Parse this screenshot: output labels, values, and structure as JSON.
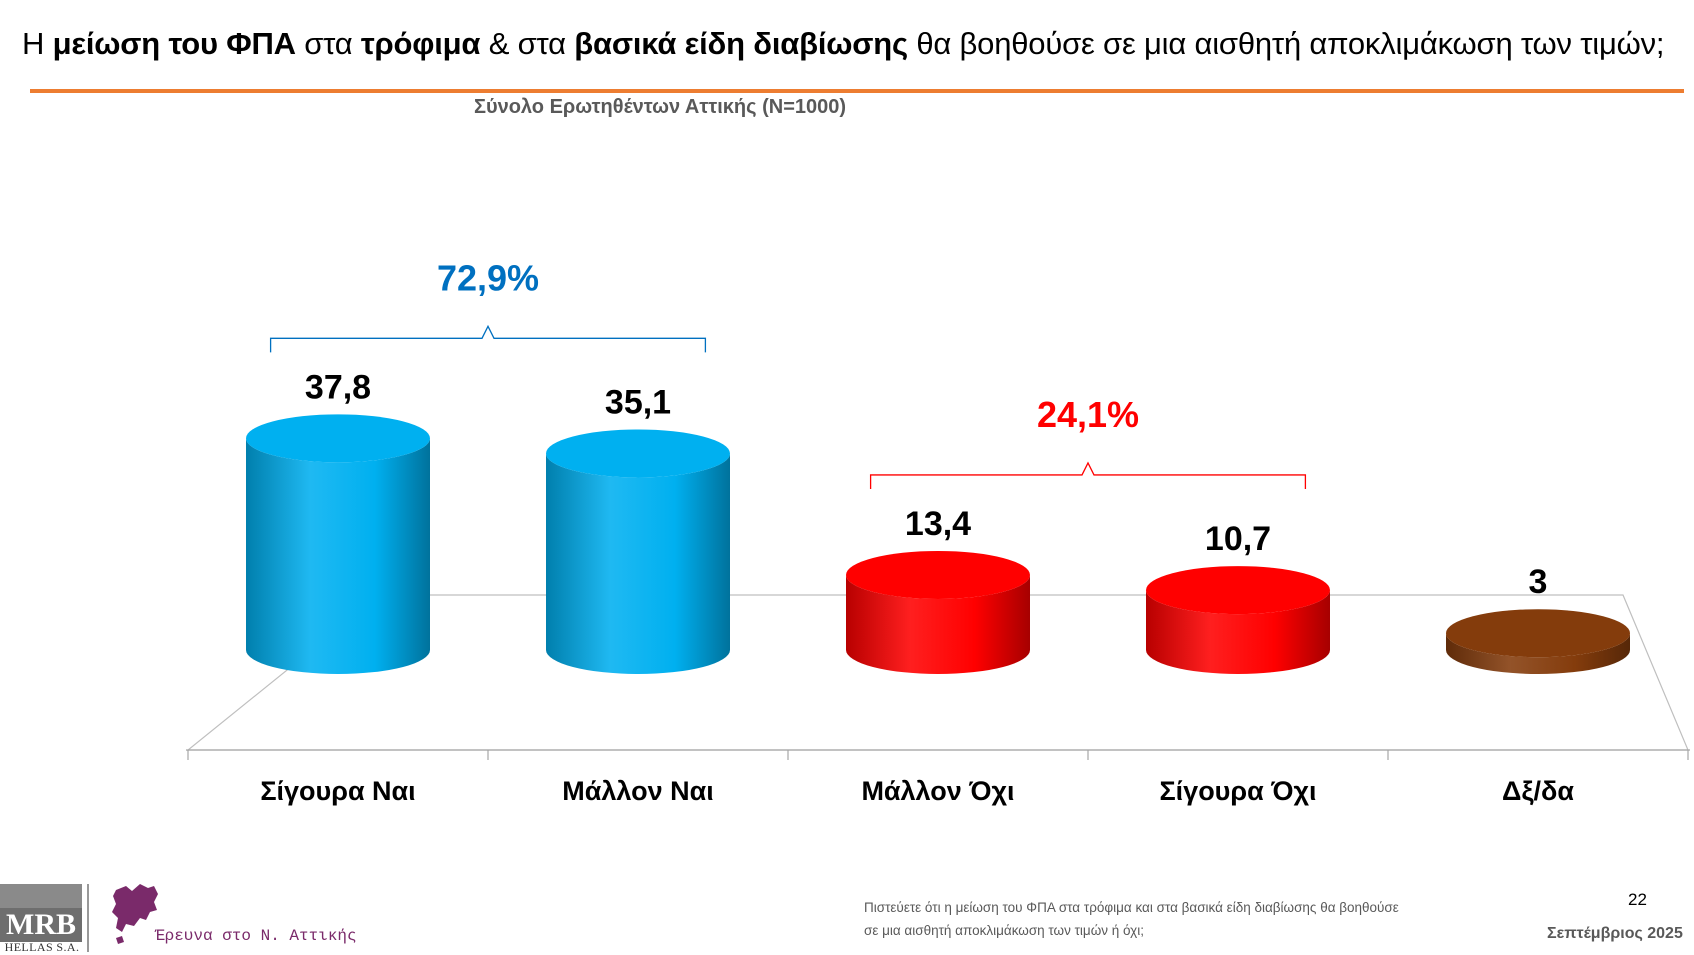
{
  "header": {
    "title_parts": [
      {
        "text": "Η ",
        "bold": false
      },
      {
        "text": "μείωση του ΦΠΑ",
        "bold": true
      },
      {
        "text": " στα ",
        "bold": false
      },
      {
        "text": "τρόφιμα",
        "bold": true
      },
      {
        "text": " & στα ",
        "bold": false
      },
      {
        "text": "βασικά είδη διαβίωσης",
        "bold": true
      },
      {
        "text": " θα βοηθούσε σε μια αισθητή αποκλιμάκωση των τιμών;",
        "bold": false
      }
    ],
    "subtitle": "Σύνολο Ερωτηθέντων Αττικής (N=1000)",
    "rule_color": "#ed7d31"
  },
  "chart_data": {
    "type": "bar",
    "style": "3d-cylinder",
    "title": "Η μείωση του ΦΠΑ στα τρόφιμα & στα βασικά είδη διαβίωσης θα βοηθούσε σε μια αισθητή αποκλιμάκωση των τιμών;",
    "subtitle": "Σύνολο Ερωτηθέντων Αττικής (N=1000)",
    "categories": [
      "Σίγουρα Ναι",
      "Μάλλον Ναι",
      "Μάλλον Όχι",
      "Σίγουρα Όχι",
      "Δξ/δα"
    ],
    "values": [
      37.8,
      35.1,
      13.4,
      10.7,
      3
    ],
    "value_labels": [
      "37,8",
      "35,1",
      "13,4",
      "10,7",
      "3"
    ],
    "colors": [
      "#00b0f0",
      "#00b0f0",
      "#ff0000",
      "#ff0000",
      "#843c0c"
    ],
    "ylim": [
      0,
      40
    ],
    "xlabel": "",
    "ylabel": "",
    "grid": false,
    "groups": [
      {
        "label": "72,9%",
        "from": 0,
        "to": 1,
        "color": "#0070c0"
      },
      {
        "label": "24,1%",
        "from": 2,
        "to": 3,
        "color": "#ff0000"
      }
    ]
  },
  "footer": {
    "question_line1": "Πιστεύετε ότι η μείωση του ΦΠΑ στα τρόφιμα και στα βασικά είδη διαβίωσης θα βοηθούσε",
    "question_line2": "σε μια αισθητή αποκλιμάκωση των τιμών ή όχι;",
    "page_number": "22",
    "date": "Σεπτέμβριος 2025",
    "logo_text": "MRB",
    "logo_subtext": "HELLAS S.A.",
    "attica_text": "Έρευνα στο Ν. Αττικής",
    "attica_color": "#7a2a6a"
  }
}
